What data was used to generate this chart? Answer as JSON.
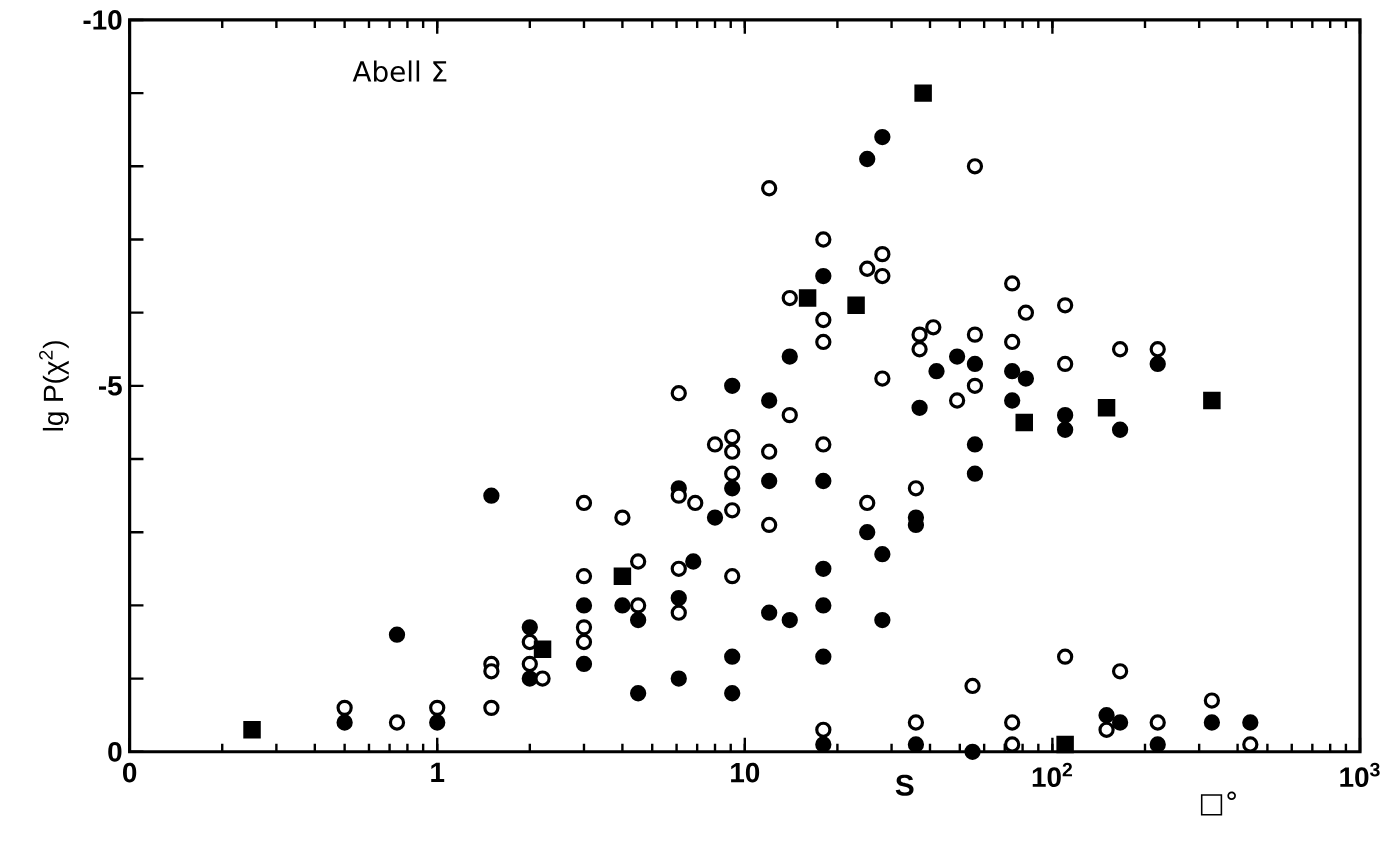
{
  "chart_data": {
    "type": "scatter",
    "xlabel": "S",
    "ylabel": "lg P(χ$^{2}$)",
    "annotations": [
      "Abell Σ",
      "□°"
    ],
    "log": "x",
    "xlim": [
      0.1,
      1000
    ],
    "ylim": [
      0,
      -10
    ],
    "xticks": [
      {
        "value": 0.1,
        "label": "0"
      },
      1,
      10,
      {
        "value": 100,
        "label": "10$^{2}$"
      },
      {
        "value": 1000,
        "label": "10$^{3}$"
      }
    ],
    "yticks": [
      0,
      {
        "value": -1,
        "label": null
      },
      {
        "value": -2,
        "label": null
      },
      {
        "value": -3,
        "label": null
      },
      {
        "value": -4,
        "label": null
      },
      -5,
      {
        "value": -6,
        "label": null
      },
      {
        "value": -7,
        "label": null
      },
      {
        "value": -8,
        "label": null
      },
      {
        "value": -9,
        "label": null
      },
      -10
    ],
    "grid": false,
    "series": [
      {
        "color": "#000000",
        "marker": "circle",
        "x": [
          0.5,
          0.74,
          1.0,
          1.5,
          2.0,
          2.0,
          3.0,
          3.0,
          4.0,
          4.5,
          25,
          28,
          18,
          14,
          42,
          49,
          56,
          37,
          9.1,
          12,
          9.1,
          12,
          18,
          56,
          56,
          6.1,
          8.0,
          25,
          28,
          36,
          36,
          4.5,
          6.8,
          6.1,
          18,
          18,
          18,
          12,
          14,
          28,
          9.1,
          9.1,
          6.1,
          18,
          36,
          55,
          74,
          82,
          74,
          110,
          110,
          166,
          220,
          150,
          166,
          220,
          330,
          440
        ],
        "values": [
          -0.4,
          -1.6,
          -0.4,
          -3.5,
          -1.7,
          -1.0,
          -2.0,
          -1.2,
          -2.0,
          -0.8,
          -8.1,
          -8.4,
          -6.5,
          -5.4,
          -5.2,
          -5.4,
          -5.3,
          -4.7,
          -5.0,
          -4.8,
          -3.6,
          -3.7,
          -3.7,
          -4.2,
          -3.8,
          -3.6,
          -3.2,
          -3.0,
          -2.7,
          -3.2,
          -3.1,
          -1.8,
          -2.6,
          -2.1,
          -2.5,
          -2.0,
          -1.3,
          -1.9,
          -1.8,
          -1.8,
          -1.3,
          -0.8,
          -1.0,
          -0.1,
          -0.1,
          0.0,
          -5.2,
          -5.1,
          -4.8,
          -4.6,
          -4.4,
          -4.4,
          -5.3,
          -0.5,
          -0.4,
          -0.1,
          -0.4,
          -0.4
        ]
      },
      {
        "color": "#000000",
        "marker": "circle-open",
        "x": [
          0.5,
          0.74,
          1.0,
          1.5,
          1.5,
          1.5,
          2.0,
          2.0,
          2.2,
          3.0,
          3.0,
          3.0,
          3.0,
          4.0,
          56,
          12,
          18,
          25,
          28,
          28,
          14,
          18,
          18,
          28,
          37,
          41,
          37,
          56,
          56,
          49,
          6.1,
          14,
          8.0,
          9.1,
          9.1,
          12,
          18,
          9.1,
          6.1,
          6.9,
          9.1,
          12,
          25,
          36,
          4.5,
          4.5,
          6.1,
          6.1,
          9.1,
          55,
          18,
          36,
          74,
          82,
          110,
          74,
          110,
          166,
          220,
          110,
          166,
          74,
          74,
          150,
          220,
          330,
          440
        ],
        "values": [
          -0.6,
          -0.4,
          -0.6,
          -1.2,
          -1.1,
          -0.6,
          -1.5,
          -1.2,
          -1.0,
          -3.4,
          -2.4,
          -1.7,
          -1.5,
          -3.2,
          -8.0,
          -7.7,
          -7.0,
          -6.6,
          -6.8,
          -6.5,
          -6.2,
          -5.9,
          -5.6,
          -5.1,
          -5.7,
          -5.8,
          -5.5,
          -5.7,
          -5.0,
          -4.8,
          -4.9,
          -4.6,
          -4.2,
          -4.3,
          -4.1,
          -4.1,
          -4.2,
          -3.8,
          -3.5,
          -3.4,
          -3.3,
          -3.1,
          -3.4,
          -3.6,
          -2.6,
          -2.0,
          -2.5,
          -1.9,
          -2.4,
          -0.9,
          -0.3,
          -0.4,
          -6.4,
          -6.0,
          -6.1,
          -5.6,
          -5.3,
          -5.5,
          -5.5,
          -1.3,
          -1.1,
          -0.4,
          -0.1,
          -0.3,
          -0.4,
          -0.7,
          -0.1
        ]
      },
      {
        "color": "#000000",
        "marker": "square",
        "x": [
          0.25,
          2.2,
          4.0,
          16,
          23,
          38,
          81,
          150,
          330,
          110
        ],
        "values": [
          -0.3,
          -1.4,
          -2.4,
          -6.2,
          -6.1,
          -9.0,
          -4.5,
          -4.7,
          -4.8,
          -0.1
        ]
      }
    ]
  }
}
